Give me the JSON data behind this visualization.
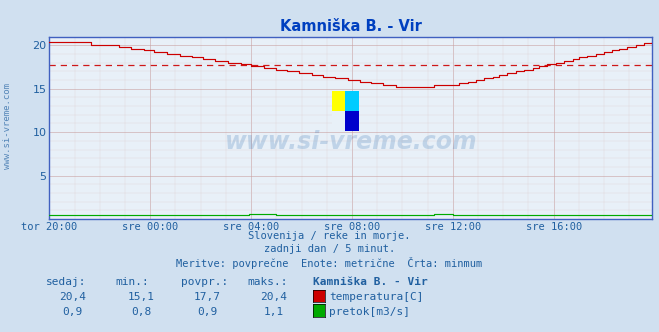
{
  "title": "Kamniška B. - Vir",
  "bg_color": "#d0e0f0",
  "plot_bg_color": "#e8f0f8",
  "grid_major_color": "#c8a0a0",
  "grid_minor_color": "#ddc8c8",
  "temp_color": "#cc0000",
  "flow_color": "#00aa00",
  "avg_line_color": "#cc0000",
  "avg_value": 17.7,
  "ylim": [
    0,
    21
  ],
  "yticks": [
    0,
    5,
    10,
    15,
    20
  ],
  "n_points": 288,
  "xtick_labels": [
    "tor 20:00",
    "sre 00:00",
    "sre 04:00",
    "sre 08:00",
    "sre 12:00",
    "sre 16:00"
  ],
  "xtick_positions": [
    0,
    48,
    96,
    144,
    192,
    240
  ],
  "subtitle1": "Slovenija / reke in morje.",
  "subtitle2": "zadnji dan / 5 minut.",
  "subtitle3": "Meritve: povprečne  Enote: metrične  Črta: minmum",
  "legend_title": "Kamniška B. - Vir",
  "label_sedaj": "sedaj:",
  "label_min": "min.:",
  "label_povpr": "povpr.:",
  "label_maks": "maks.:",
  "temp_sedaj": "20,4",
  "temp_min_val": "15,1",
  "temp_povpr": "17,7",
  "temp_maks": "20,4",
  "flow_sedaj": "0,9",
  "flow_min_val": "0,8",
  "flow_povpr": "0,9",
  "flow_maks": "1,1",
  "temp_label": "temperatura[C]",
  "flow_label": "pretok[m3/s]",
  "text_color": "#2060a0",
  "title_color": "#0040c0",
  "watermark_color": "#3070b0",
  "left_text_color": "#2060a0",
  "spine_color": "#4060c0"
}
